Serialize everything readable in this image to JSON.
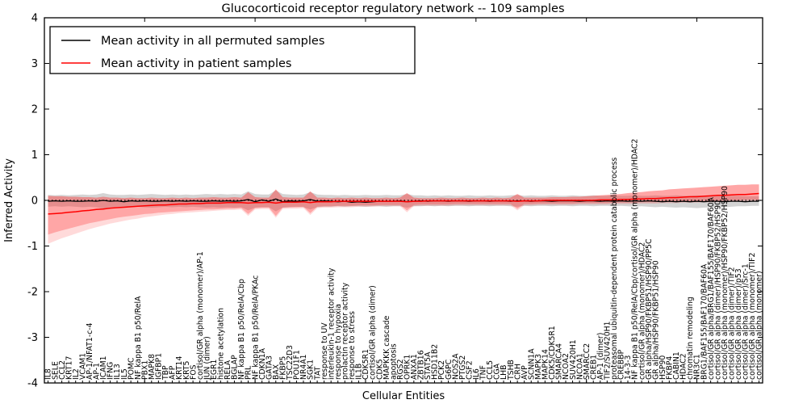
{
  "chart_data": {
    "type": "line",
    "title": "Glucocorticoid receptor regulatory network -- 109 samples",
    "xlabel": "Cellular Entities",
    "ylabel": "Inferred Activity",
    "ylim": [
      -4,
      4
    ],
    "yticks": [
      -4,
      -3,
      -2,
      -1,
      0,
      1,
      2,
      3,
      4
    ],
    "grid": false,
    "legend_position": "upper left",
    "zero_line": {
      "style": "dotted",
      "color": "#000000"
    },
    "categories": [
      "IL8",
      "SELE",
      "CCL2",
      "KRT17",
      "IL2",
      "VCAM1",
      "AP-1/NFAT1-c-4",
      "AP-1",
      "ICAM1",
      "IFNG",
      "IL13",
      "IL5",
      "POMC",
      "NF kappa B1 p50/RelA",
      "PBX1",
      "MAPK8",
      "IGFBP1",
      "TBP",
      "AFP",
      "KRT14",
      "KRT5",
      "FOS",
      "cortisol/GR alpha (monomer)/AP-1",
      "JUN (dimer)",
      "EGR1",
      "histone acetylation",
      "RELA",
      "BGLAP",
      "NF kappa B1 p50/RelA/Cbp",
      "PRL",
      "NF kappa B1 p50/RelA/PKAc",
      "CDKN1A",
      "GATA3",
      "BAX",
      "FKBP5",
      "TSC22D3",
      "POU1F1",
      "NR4A1",
      "SGK1",
      "TAT",
      "response to UV",
      "interleukin-1 receptor activity",
      "response to hypoxia",
      "prolactin receptor activity",
      "response to stress",
      "IL1B",
      "CDK5R1",
      "cortisol/GR alpha (dimer)",
      "CDK5",
      "MAPKKK cascade",
      "apoptosis",
      "RGS2",
      "OPRK1",
      "ANXA1",
      "ZBTB16",
      "STAT5A",
      "HSD11B2",
      "PCK2",
      "G6PC",
      "NOS2A",
      "PTGS2",
      "CSF2",
      "IL6",
      "TNF",
      "CCL5",
      "CGA",
      "LHB",
      "TSHB",
      "CRH",
      "AVP",
      "SCNN1A",
      "MAPK3",
      "MAPK14",
      "CDK5/CDK5R1",
      "SMARCA4",
      "NCOA2",
      "SUV420H1",
      "NCOA1",
      "SMARCC2",
      "CREB1",
      "AP-1 (dimer)",
      "TIF2/SUV420H1",
      "proteasomal ubiquitin-dependent protein catabolic process",
      "CREBBP",
      "14-3-3",
      "NF kappa B1 p50/RelA/Cbp/cortisol/GR alpha (monomer)/HDAC2",
      "cortisol/GR alpha (monomer)/HDAC2",
      "GR alpha/HSP90/FKBP51/HSP90/PP5C",
      "GR alpha/HSP90/FKBP51/HSP90",
      "HSP90",
      "FKBP4",
      "CABIN1",
      "HDAC2",
      "chromatin remodeling",
      "NR3C1",
      "BRG1/BAF155/BAF170/BAF60A",
      "cortisol/GR alpha/BRG1/BAF155/BAF170/BAF60A",
      "cortisol/GR alpha (dimer)/HSP90/FKBP52/HSP90",
      "cortisol/GR alpha (monomer)/HSP90/FKBP52/HSP90",
      "cortisol/GR alpha (dimer)/TIF2",
      "cortisol/GR alpha (dimer)/p53",
      "cortisol/GR alpha (dimer)/Src-1",
      "cortisol/GR alpha (monomer)/TIF2",
      "cortisol/GR alpha (monomer)"
    ],
    "series": [
      {
        "name": "Mean activity in all permuted samples",
        "color": "#000000",
        "values": [
          -0.02,
          -0.01,
          -0.02,
          -0.01,
          -0.02,
          -0.02,
          -0.01,
          -0.02,
          0.0,
          -0.02,
          -0.01,
          -0.03,
          -0.01,
          -0.02,
          -0.01,
          -0.02,
          -0.02,
          -0.01,
          -0.02,
          -0.01,
          -0.02,
          -0.01,
          -0.02,
          -0.02,
          -0.01,
          -0.02,
          -0.01,
          -0.02,
          -0.01,
          0.02,
          -0.03,
          0.01,
          -0.02,
          0.03,
          -0.03,
          -0.01,
          -0.02,
          -0.01,
          0.02,
          -0.02,
          -0.01,
          -0.02,
          -0.03,
          -0.02,
          -0.04,
          -0.03,
          -0.04,
          -0.03,
          -0.02,
          -0.02,
          -0.02,
          -0.01,
          -0.03,
          -0.02,
          -0.01,
          -0.02,
          -0.01,
          -0.01,
          -0.02,
          -0.01,
          -0.01,
          -0.02,
          -0.01,
          -0.01,
          -0.02,
          -0.01,
          -0.01,
          -0.02,
          -0.01,
          -0.01,
          -0.02,
          -0.01,
          -0.01,
          -0.02,
          -0.01,
          -0.01,
          -0.01,
          -0.02,
          -0.01,
          -0.01,
          -0.02,
          -0.01,
          -0.02,
          -0.01,
          -0.02,
          -0.01,
          -0.02,
          -0.01,
          -0.02,
          -0.03,
          -0.02,
          -0.03,
          -0.02,
          -0.03,
          -0.02,
          -0.03,
          -0.02,
          -0.02,
          -0.03,
          -0.02,
          -0.02,
          -0.03,
          -0.02,
          -0.02
        ],
        "band_upper": [
          0.12,
          0.11,
          0.12,
          0.11,
          0.12,
          0.13,
          0.12,
          0.13,
          0.16,
          0.13,
          0.12,
          0.12,
          0.13,
          0.12,
          0.13,
          0.14,
          0.13,
          0.12,
          0.13,
          0.12,
          0.13,
          0.12,
          0.13,
          0.14,
          0.13,
          0.14,
          0.13,
          0.14,
          0.13,
          0.2,
          0.14,
          0.13,
          0.13,
          0.22,
          0.14,
          0.13,
          0.12,
          0.13,
          0.18,
          0.13,
          0.12,
          0.12,
          0.11,
          0.12,
          0.11,
          0.11,
          0.12,
          0.11,
          0.11,
          0.12,
          0.11,
          0.11,
          0.14,
          0.11,
          0.11,
          0.1,
          0.11,
          0.1,
          0.11,
          0.1,
          0.1,
          0.11,
          0.1,
          0.1,
          0.11,
          0.1,
          0.1,
          0.11,
          0.12,
          0.1,
          0.11,
          0.1,
          0.1,
          0.11,
          0.1,
          0.1,
          0.11,
          0.1,
          0.1,
          0.11,
          0.1,
          0.1,
          0.11,
          0.1,
          0.1,
          0.11,
          0.1,
          0.1,
          0.11,
          0.1,
          0.1,
          0.11,
          0.1,
          0.1,
          0.11,
          0.1,
          0.1,
          0.1,
          0.1,
          0.1,
          0.1,
          0.09,
          0.09,
          0.09
        ],
        "band_lower": [
          -0.14,
          -0.13,
          -0.14,
          -0.13,
          -0.14,
          -0.15,
          -0.14,
          -0.15,
          -0.18,
          -0.15,
          -0.14,
          -0.14,
          -0.15,
          -0.14,
          -0.15,
          -0.16,
          -0.15,
          -0.14,
          -0.15,
          -0.14,
          -0.15,
          -0.14,
          -0.15,
          -0.16,
          -0.15,
          -0.16,
          -0.15,
          -0.16,
          -0.15,
          -0.22,
          -0.16,
          -0.15,
          -0.15,
          -0.24,
          -0.16,
          -0.15,
          -0.14,
          -0.15,
          -0.2,
          -0.15,
          -0.14,
          -0.14,
          -0.13,
          -0.14,
          -0.13,
          -0.13,
          -0.14,
          -0.13,
          -0.13,
          -0.14,
          -0.13,
          -0.13,
          -0.16,
          -0.13,
          -0.13,
          -0.12,
          -0.13,
          -0.12,
          -0.13,
          -0.12,
          -0.12,
          -0.13,
          -0.12,
          -0.12,
          -0.13,
          -0.12,
          -0.12,
          -0.13,
          -0.14,
          -0.12,
          -0.13,
          -0.12,
          -0.12,
          -0.13,
          -0.12,
          -0.12,
          -0.13,
          -0.12,
          -0.12,
          -0.13,
          -0.12,
          -0.12,
          -0.13,
          -0.12,
          -0.13,
          -0.14,
          -0.13,
          -0.14,
          -0.15,
          -0.14,
          -0.15,
          -0.16,
          -0.15,
          -0.16,
          -0.17,
          -0.16,
          -0.15,
          -0.16,
          -0.15,
          -0.14,
          -0.13,
          -0.13,
          -0.12,
          -0.12
        ],
        "band_color": "#aaaaaa",
        "band_opacity": 0.5
      },
      {
        "name": "Mean activity in patient samples",
        "color": "#ff0000",
        "values": [
          -0.3,
          -0.29,
          -0.28,
          -0.26,
          -0.25,
          -0.23,
          -0.22,
          -0.2,
          -0.19,
          -0.17,
          -0.16,
          -0.15,
          -0.14,
          -0.13,
          -0.12,
          -0.11,
          -0.1,
          -0.1,
          -0.09,
          -0.08,
          -0.08,
          -0.07,
          -0.07,
          -0.06,
          -0.06,
          -0.06,
          -0.05,
          -0.05,
          -0.05,
          -0.06,
          -0.05,
          -0.05,
          -0.04,
          -0.06,
          -0.04,
          -0.04,
          -0.04,
          -0.03,
          -0.05,
          -0.03,
          -0.03,
          -0.03,
          -0.02,
          -0.02,
          -0.02,
          -0.02,
          -0.02,
          -0.02,
          -0.02,
          -0.02,
          -0.02,
          -0.02,
          -0.03,
          -0.02,
          -0.02,
          -0.01,
          -0.01,
          -0.01,
          -0.01,
          -0.01,
          -0.01,
          -0.01,
          -0.01,
          -0.01,
          -0.01,
          -0.01,
          -0.01,
          -0.01,
          -0.02,
          -0.01,
          -0.01,
          -0.01,
          0.0,
          0.0,
          0.0,
          0.0,
          0.0,
          0.0,
          0.0,
          0.0,
          0.01,
          0.01,
          0.01,
          0.02,
          0.02,
          0.03,
          0.03,
          0.04,
          0.04,
          0.05,
          0.06,
          0.06,
          0.07,
          0.08,
          0.08,
          0.09,
          0.1,
          0.11,
          0.11,
          0.12,
          0.13,
          0.13,
          0.14,
          0.15
        ],
        "band_upper": [
          0.1,
          0.09,
          0.09,
          0.08,
          0.08,
          0.07,
          0.07,
          0.06,
          0.08,
          0.06,
          0.06,
          0.05,
          0.06,
          0.05,
          0.05,
          0.06,
          0.05,
          0.05,
          0.06,
          0.05,
          0.06,
          0.05,
          0.06,
          0.06,
          0.07,
          0.06,
          0.06,
          0.07,
          0.06,
          0.18,
          0.07,
          0.06,
          0.06,
          0.24,
          0.07,
          0.06,
          0.06,
          0.06,
          0.2,
          0.06,
          0.06,
          0.05,
          0.06,
          0.05,
          0.06,
          0.05,
          0.06,
          0.05,
          0.05,
          0.06,
          0.05,
          0.06,
          0.16,
          0.06,
          0.05,
          0.05,
          0.05,
          0.06,
          0.05,
          0.05,
          0.06,
          0.05,
          0.05,
          0.06,
          0.05,
          0.06,
          0.05,
          0.06,
          0.14,
          0.06,
          0.06,
          0.06,
          0.06,
          0.07,
          0.07,
          0.07,
          0.08,
          0.08,
          0.09,
          0.1,
          0.11,
          0.12,
          0.13,
          0.14,
          0.16,
          0.17,
          0.18,
          0.2,
          0.21,
          0.22,
          0.24,
          0.25,
          0.26,
          0.27,
          0.28,
          0.29,
          0.3,
          0.31,
          0.32,
          0.33,
          0.34,
          0.34,
          0.35,
          0.35
        ],
        "band_lower": [
          -0.75,
          -0.7,
          -0.66,
          -0.62,
          -0.58,
          -0.54,
          -0.5,
          -0.47,
          -0.44,
          -0.41,
          -0.38,
          -0.36,
          -0.34,
          -0.32,
          -0.3,
          -0.29,
          -0.27,
          -0.26,
          -0.25,
          -0.24,
          -0.23,
          -0.22,
          -0.21,
          -0.2,
          -0.2,
          -0.19,
          -0.18,
          -0.18,
          -0.17,
          -0.3,
          -0.17,
          -0.16,
          -0.16,
          -0.34,
          -0.16,
          -0.15,
          -0.15,
          -0.14,
          -0.28,
          -0.14,
          -0.13,
          -0.13,
          -0.12,
          -0.12,
          -0.12,
          -0.11,
          -0.11,
          -0.11,
          -0.1,
          -0.1,
          -0.1,
          -0.1,
          -0.22,
          -0.1,
          -0.09,
          -0.09,
          -0.09,
          -0.09,
          -0.09,
          -0.08,
          -0.08,
          -0.08,
          -0.08,
          -0.08,
          -0.08,
          -0.08,
          -0.08,
          -0.08,
          -0.18,
          -0.08,
          -0.08,
          -0.07,
          -0.07,
          -0.07,
          -0.07,
          -0.07,
          -0.07,
          -0.06,
          -0.06,
          -0.06,
          -0.06,
          -0.06,
          -0.05,
          -0.05,
          -0.05,
          -0.05,
          -0.04,
          -0.04,
          -0.04,
          -0.03,
          -0.03,
          -0.03,
          -0.02,
          -0.02,
          -0.02,
          -0.01,
          -0.01,
          -0.01,
          0.0,
          0.0,
          0.0,
          0.01,
          0.01,
          0.01
        ],
        "outer_band_lower": [
          -0.95,
          -0.89,
          -0.83,
          -0.78,
          -0.73,
          -0.68,
          -0.63,
          -0.59,
          -0.55,
          -0.51,
          -0.48,
          -0.45,
          -0.42,
          -0.4,
          -0.37,
          -0.35,
          -0.33,
          -0.31,
          -0.3,
          -0.28,
          -0.27,
          -0.26,
          -0.25,
          -0.24,
          -0.23,
          -0.22,
          -0.21,
          -0.21,
          -0.2,
          -0.34,
          -0.2,
          -0.19,
          -0.19,
          -0.38,
          -0.19,
          -0.18,
          -0.18,
          -0.17,
          -0.32,
          -0.17,
          -0.16,
          -0.16,
          -0.15,
          -0.15,
          -0.15,
          -0.14,
          -0.14,
          -0.14,
          -0.13,
          -0.13,
          -0.13,
          -0.13,
          -0.26,
          -0.13,
          -0.12,
          -0.12,
          -0.12,
          -0.12,
          -0.12,
          -0.11,
          -0.11,
          -0.11,
          -0.11,
          -0.11,
          -0.11,
          -0.11,
          -0.11,
          -0.11,
          -0.22,
          -0.11,
          -0.11,
          -0.1,
          -0.1,
          -0.1,
          -0.1,
          -0.1,
          -0.1,
          -0.09,
          -0.09,
          -0.09,
          -0.09,
          -0.09,
          -0.08,
          -0.08,
          -0.08,
          -0.08,
          -0.07,
          -0.07,
          -0.07,
          -0.06,
          -0.06,
          -0.06,
          -0.05,
          -0.05,
          -0.05,
          -0.04,
          -0.04,
          -0.04,
          -0.03,
          -0.03,
          -0.03,
          -0.02,
          -0.02,
          -0.02
        ],
        "band_color": "#ff3030",
        "band_opacity": 0.3
      }
    ]
  }
}
